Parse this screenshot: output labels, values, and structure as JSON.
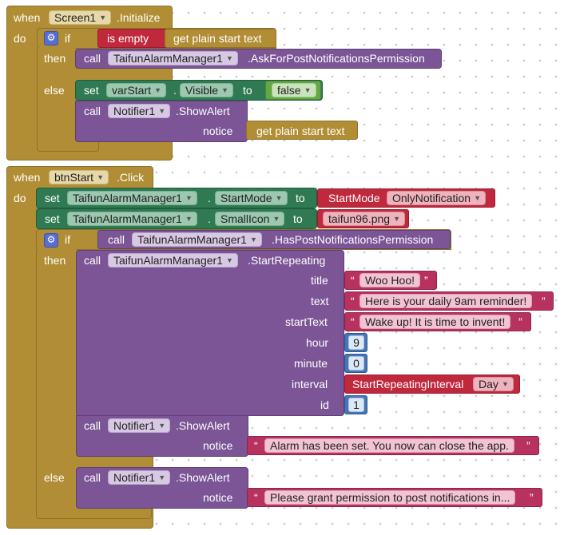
{
  "block1": {
    "when": "when",
    "screen": "Screen1",
    "event": ".Initialize",
    "do": "do",
    "if": "if",
    "then": "then",
    "else": "else",
    "is_empty": "is empty",
    "get_plain": "get plain start text",
    "call": "call",
    "tam": "TaifunAlarmManager1",
    "ask": ".AskForPostNotificationsPermission",
    "set": "set",
    "varstart": "varStart",
    "dot": ".",
    "visible": "Visible",
    "to": "to",
    "false": "false",
    "notifier": "Notifier1",
    "showalert": ".ShowAlert",
    "notice": "notice",
    "get_plain2": "get plain start text"
  },
  "block2": {
    "when": "when",
    "btn": "btnStart",
    "event": ".Click",
    "do": "do",
    "set": "set",
    "tam": "TaifunAlarmManager1",
    "dot": ".",
    "startmode_prop": "StartMode",
    "to": "to",
    "startmode_lbl": "StartMode",
    "onlynotif": "OnlyNotification",
    "smallicon_prop": "SmallIcon",
    "icon_file": "taifun96.png",
    "if": "if",
    "call": "call",
    "hasperm": ".HasPostNotificationsPermission",
    "then": "then",
    "startrep": ".StartRepeating",
    "p_title": "title",
    "p_text": "text",
    "p_starttext": "startText",
    "p_hour": "hour",
    "p_minute": "minute",
    "p_interval": "interval",
    "p_id": "id",
    "v_title": "Woo Hoo!",
    "v_text": "Here is your daily 9am reminder!",
    "v_starttext": "Wake up! It is time to invent!",
    "v_hour": "9",
    "v_minute": "0",
    "interval_lbl": "StartRepeatingInterval",
    "interval_val": "Day",
    "v_id": "1",
    "notifier": "Notifier1",
    "showalert": ".ShowAlert",
    "notice": "notice",
    "msg1": "Alarm has been set. You now can close the app.",
    "else": "else",
    "msg2": "Please grant permission to post notifications in..."
  },
  "colors": {
    "event": "#b18e35",
    "procedure": "#7b5596",
    "setter": "#2f7a52",
    "helper": "#c0283c",
    "text": "#b8325f",
    "number": "#4575b8",
    "logic": "#62a844"
  }
}
